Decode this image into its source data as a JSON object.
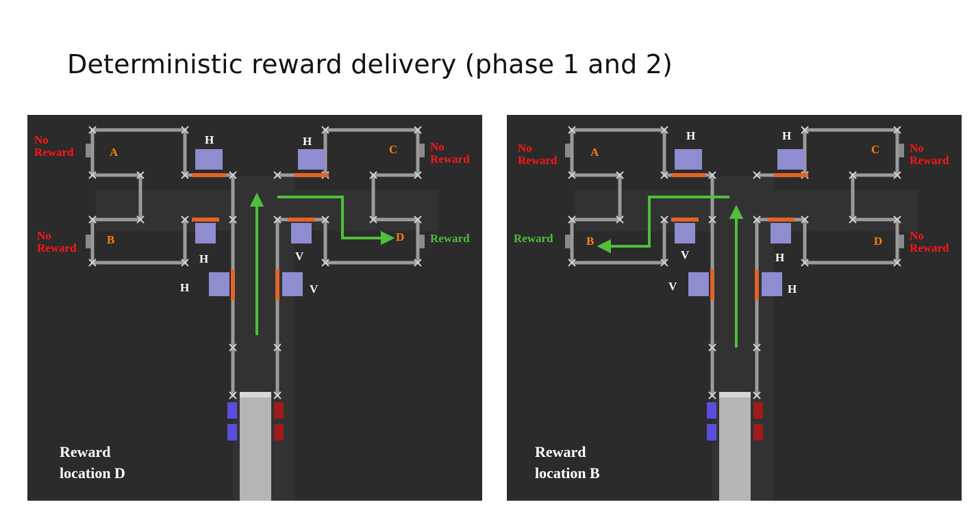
{
  "title": "Deterministic reward delivery (phase 1 and 2)",
  "panels": [
    {
      "caption": "Reward\nlocation D",
      "arms": {
        "a": "A",
        "b": "B",
        "c": "C",
        "d": "D"
      },
      "outcomes": {
        "a": "No\nReward",
        "b": "No\nReward",
        "c": "No\nReward",
        "d": "Reward"
      },
      "doors": {
        "top_left": "H",
        "top_right": "H",
        "mid_left": "H",
        "mid_right": "V",
        "low_left": "H",
        "low_right": "V"
      }
    },
    {
      "caption": "Reward\nlocation B",
      "arms": {
        "a": "A",
        "b": "B",
        "c": "C",
        "d": "D"
      },
      "outcomes": {
        "a": "No\nReward",
        "b": "Reward",
        "c": "No\nReward",
        "d": "No\nReward"
      },
      "doors": {
        "top_left": "H",
        "top_right": "H",
        "mid_left": "V",
        "mid_right": "H",
        "low_left": "V",
        "low_right": "H"
      }
    }
  ],
  "colors": {
    "background": "#2b2b2b",
    "no_reward": "#ff1414",
    "reward": "#4fbf3c",
    "arm_label": "#ff8000",
    "door_label": "#ffffff",
    "arrow": "#4fbf3c"
  }
}
